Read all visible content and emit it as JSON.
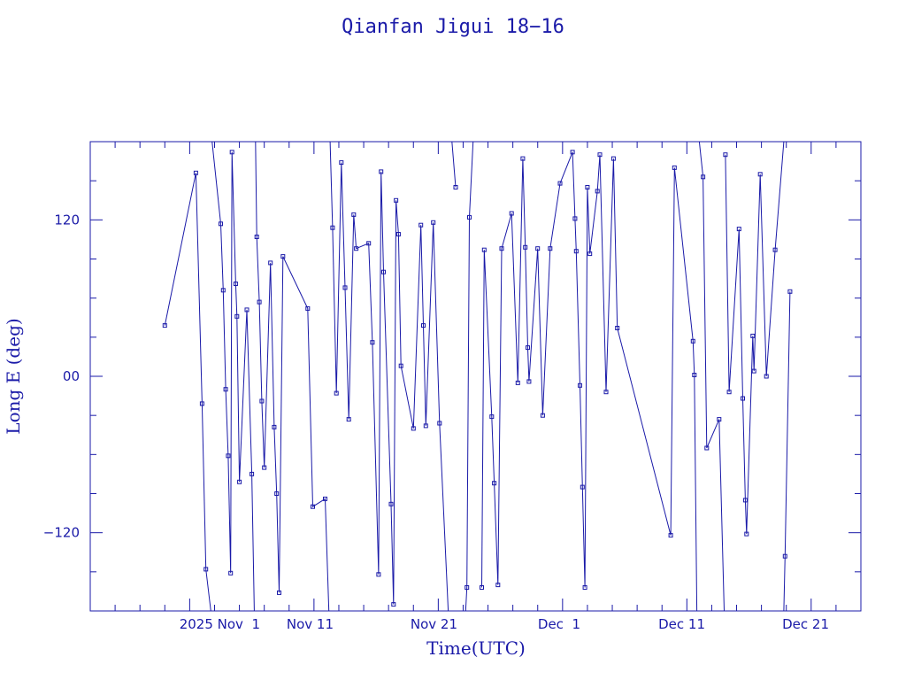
{
  "chart_data": {
    "type": "line",
    "title": "Qianfan Jigui 18−16",
    "xlabel": "Time(UTC)",
    "ylabel": "Long E (deg)",
    "x_ticks": [
      "2025 Nov  1",
      "Nov 11",
      "Nov 21",
      "Dec  1",
      "Dec 11",
      "Dec 21"
    ],
    "y_ticks": [
      "−120",
      "00",
      "120"
    ],
    "xlim_days": [
      -8,
      54
    ],
    "ylim": [
      -180,
      180
    ],
    "y_minor_step": 30,
    "x_minor_step_days": 2,
    "grid": false,
    "series": [
      {
        "points": [
          [
            -2.0,
            39
          ],
          [
            0.5,
            156
          ],
          [
            1.0,
            -21
          ],
          [
            1.3,
            -148
          ],
          [
            1.7,
            -180
          ],
          [
            1.8,
            180
          ],
          [
            2.5,
            117
          ],
          [
            2.7,
            66
          ],
          [
            2.9,
            -10
          ],
          [
            3.1,
            -61
          ],
          [
            3.3,
            -151
          ],
          [
            3.4,
            172
          ],
          [
            3.7,
            71
          ],
          [
            3.8,
            46
          ],
          [
            4.0,
            -81
          ],
          [
            4.6,
            51
          ],
          [
            5.0,
            -75
          ],
          [
            5.2,
            -180
          ],
          [
            5.3,
            180
          ],
          [
            5.4,
            107
          ],
          [
            5.6,
            57
          ],
          [
            5.8,
            -19
          ],
          [
            6.0,
            -70
          ],
          [
            6.5,
            87
          ],
          [
            6.8,
            -39
          ],
          [
            7.0,
            -90
          ],
          [
            7.2,
            -166
          ],
          [
            7.5,
            92
          ],
          [
            9.5,
            52
          ],
          [
            9.9,
            -100
          ],
          [
            10.9,
            -94
          ],
          [
            11.2,
            -180
          ],
          [
            11.3,
            180
          ],
          [
            11.5,
            114
          ],
          [
            11.8,
            -13
          ],
          [
            12.2,
            164
          ],
          [
            12.5,
            68
          ],
          [
            12.8,
            -33
          ],
          [
            13.2,
            124
          ],
          [
            13.4,
            98
          ],
          [
            14.4,
            102
          ],
          [
            14.7,
            26
          ],
          [
            15.2,
            -152
          ],
          [
            15.4,
            157
          ],
          [
            15.6,
            80
          ],
          [
            16.2,
            -98
          ],
          [
            16.4,
            -175
          ],
          [
            16.6,
            135
          ],
          [
            16.8,
            109
          ],
          [
            17.0,
            8
          ],
          [
            18.0,
            -40
          ],
          [
            18.6,
            116
          ],
          [
            18.8,
            39
          ],
          [
            19.0,
            -38
          ],
          [
            19.6,
            118
          ],
          [
            20.1,
            -36
          ],
          [
            20.8,
            -180
          ],
          [
            21.1,
            180
          ],
          [
            21.4,
            145
          ],
          [
            22.2,
            -180
          ],
          [
            22.3,
            -162
          ],
          [
            22.5,
            122
          ],
          [
            22.8,
            180
          ],
          [
            23.5,
            -162
          ],
          [
            23.7,
            97
          ],
          [
            24.3,
            -31
          ],
          [
            24.5,
            -82
          ],
          [
            24.8,
            -160
          ],
          [
            25.1,
            98
          ],
          [
            25.9,
            125
          ],
          [
            26.4,
            -5
          ],
          [
            26.8,
            167
          ],
          [
            27.0,
            99
          ],
          [
            27.2,
            22
          ],
          [
            27.3,
            -4
          ],
          [
            28.0,
            98
          ],
          [
            28.4,
            -30
          ],
          [
            29.0,
            98
          ],
          [
            29.8,
            148
          ],
          [
            30.8,
            172
          ],
          [
            31.0,
            121
          ],
          [
            31.1,
            96
          ],
          [
            31.4,
            -7
          ],
          [
            31.6,
            -85
          ],
          [
            31.8,
            -162
          ],
          [
            32.0,
            145
          ],
          [
            32.2,
            94
          ],
          [
            32.8,
            142
          ],
          [
            33.0,
            170
          ],
          [
            33.5,
            -12
          ],
          [
            34.1,
            167
          ],
          [
            34.4,
            37
          ],
          [
            38.7,
            -122
          ],
          [
            39.0,
            160
          ],
          [
            40.5,
            27
          ],
          [
            40.6,
            1
          ],
          [
            40.8,
            -180
          ],
          [
            41.0,
            180
          ],
          [
            41.3,
            153
          ],
          [
            41.6,
            -55
          ],
          [
            42.6,
            -33
          ],
          [
            43.0,
            -180
          ],
          [
            43.1,
            170
          ],
          [
            43.4,
            -12
          ],
          [
            44.2,
            113
          ],
          [
            44.5,
            -17
          ],
          [
            44.7,
            -95
          ],
          [
            44.8,
            -121
          ],
          [
            45.3,
            31
          ],
          [
            45.4,
            4
          ],
          [
            45.9,
            155
          ],
          [
            46.4,
            0
          ],
          [
            47.1,
            97
          ],
          [
            47.8,
            180
          ],
          [
            47.8,
            -180
          ],
          [
            47.9,
            -138
          ],
          [
            48.3,
            65
          ]
        ]
      }
    ]
  }
}
